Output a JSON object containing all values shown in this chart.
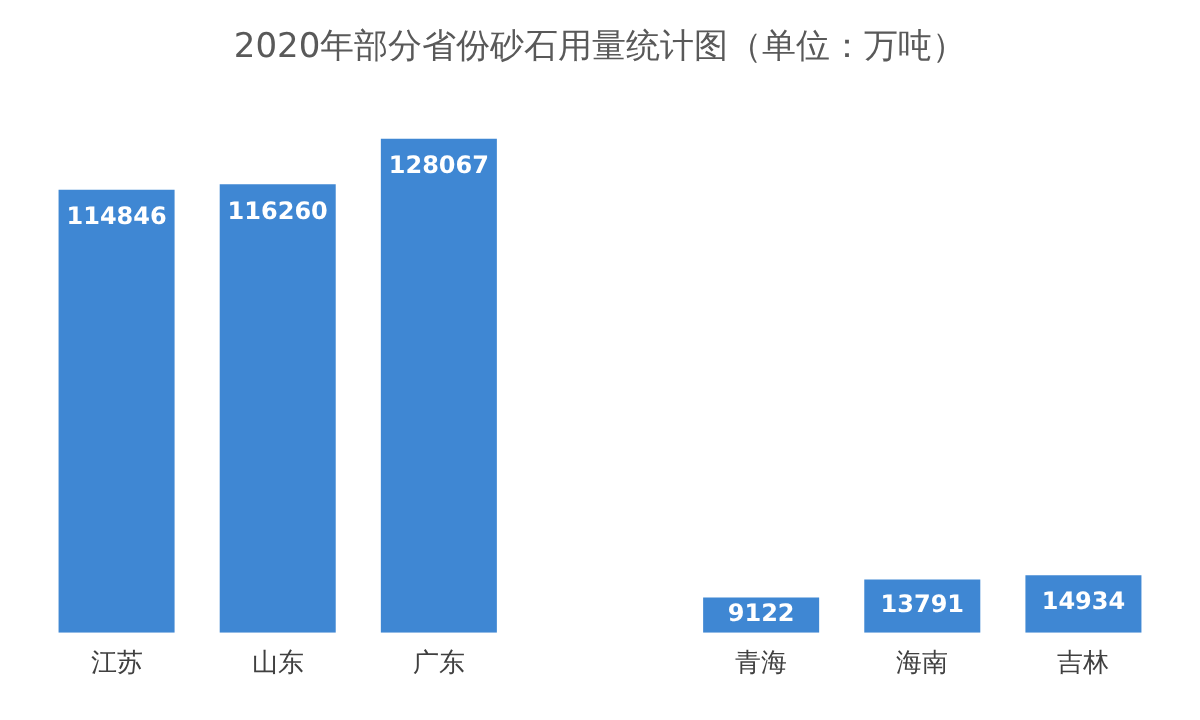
{
  "chart_data": {
    "type": "bar",
    "title": "2020年部分省份砂石用量统计图（单位：万吨）",
    "categories": [
      "江苏",
      "山东",
      "广东",
      null,
      "青海",
      "海南",
      "吉林"
    ],
    "values": [
      114846,
      116260,
      128067,
      null,
      9122,
      13791,
      14934
    ],
    "color": "#3f87d3",
    "data_labels": true,
    "grid": false,
    "legend": false
  }
}
